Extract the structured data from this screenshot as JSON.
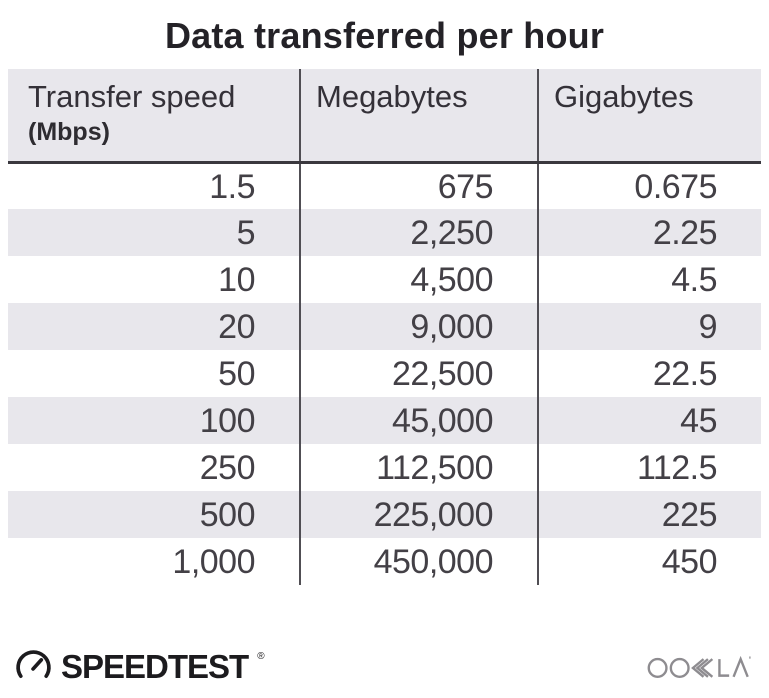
{
  "title": "Data transferred per hour",
  "table": {
    "header": {
      "col1_line1": "Transfer speed",
      "col1_line2": "(Mbps)",
      "col2": "Megabytes",
      "col3": "Gigabytes"
    },
    "rows": [
      [
        "1.5",
        "675",
        "0.675"
      ],
      [
        "5",
        "2,250",
        "2.25"
      ],
      [
        "10",
        "4,500",
        "4.5"
      ],
      [
        "20",
        "9,000",
        "9"
      ],
      [
        "50",
        "22,500",
        "22.5"
      ],
      [
        "100",
        "45,000",
        "45"
      ],
      [
        "250",
        "112,500",
        "112.5"
      ],
      [
        "500",
        "225,000",
        "225"
      ],
      [
        "1,000",
        "450,000",
        "450"
      ]
    ]
  },
  "footer": {
    "speedtest_label": "SPEEDTEST",
    "speedtest_mark": "®",
    "ookla_label": "OOKLA"
  },
  "colors": {
    "stripe_bg": "#e8e7ec",
    "divider": "#504e54",
    "header_border": "#3a383e",
    "title_text": "#242227",
    "body_text": "#434046",
    "speedtest_black": "#1c1b1e",
    "ookla_gray": "#8e8c90"
  },
  "chart_data": {
    "type": "table",
    "title": "Data transferred per hour",
    "columns": [
      "Transfer speed (Mbps)",
      "Megabytes",
      "Gigabytes"
    ],
    "rows": [
      [
        1.5,
        675,
        0.675
      ],
      [
        5,
        2250,
        2.25
      ],
      [
        10,
        4500,
        4.5
      ],
      [
        20,
        9000,
        9
      ],
      [
        50,
        22500,
        22.5
      ],
      [
        100,
        45000,
        45
      ],
      [
        250,
        112500,
        112.5
      ],
      [
        500,
        225000,
        225
      ],
      [
        1000,
        450000,
        450
      ]
    ]
  }
}
